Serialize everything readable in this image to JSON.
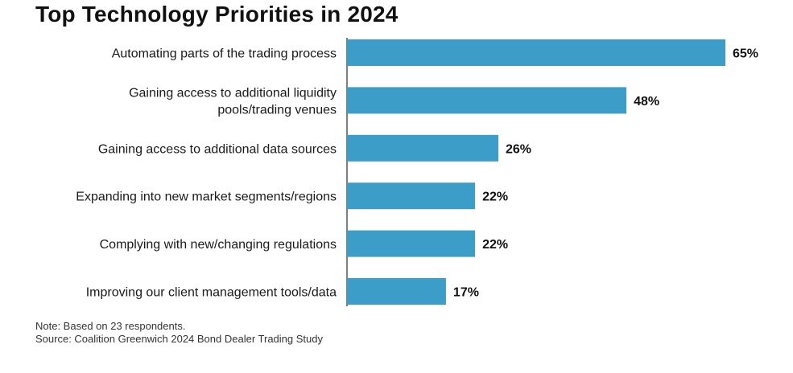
{
  "chart_data": {
    "type": "bar",
    "orientation": "horizontal",
    "title": "Top Technology Priorities in 2024",
    "categories": [
      "Automating parts of the trading process",
      "Gaining access to additional liquidity pools/trading venues",
      "Gaining access to additional data sources",
      "Expanding into new market segments/regions",
      "Complying with new/changing regulations",
      "Improving our client management tools/data"
    ],
    "category_lines": [
      [
        "Automating parts of the trading process"
      ],
      [
        "Gaining access to additional liquidity",
        "pools/trading venues"
      ],
      [
        "Gaining access to additional data sources"
      ],
      [
        "Expanding into new market segments/regions"
      ],
      [
        "Complying with new/changing regulations"
      ],
      [
        "Improving our client management tools/data"
      ]
    ],
    "values": [
      65,
      48,
      26,
      22,
      22,
      17
    ],
    "value_labels": [
      "65%",
      "48%",
      "26%",
      "22%",
      "22%",
      "17%"
    ],
    "unit": "%",
    "xlim": [
      0,
      65
    ],
    "grid": false,
    "legend": "none",
    "bar_color": "#3d9dc9",
    "notes": [
      "Note: Based on 23 respondents.",
      "Source: Coalition Greenwich 2024 Bond Dealer Trading Study"
    ]
  }
}
